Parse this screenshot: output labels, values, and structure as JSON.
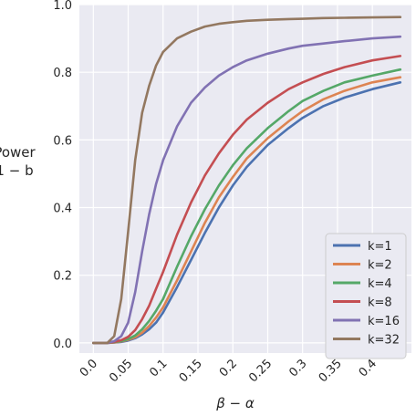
{
  "chart_data": {
    "type": "line",
    "title": "",
    "xlabel": "β − α",
    "ylabel_lines": [
      "Power",
      "1 − b"
    ],
    "xlim": [
      -0.02,
      0.456
    ],
    "ylim": [
      -0.03,
      1.0
    ],
    "xticks": [
      0.0,
      0.05,
      0.1,
      0.15,
      0.2,
      0.25,
      0.3,
      0.35,
      0.4
    ],
    "xtick_labels": [
      "0.0",
      "0.05",
      "0.1",
      "0.15",
      "0.2",
      "0.25",
      "0.3",
      "0.35",
      "0.4"
    ],
    "yticks": [
      0.0,
      0.2,
      0.4,
      0.6,
      0.8,
      1.0
    ],
    "ytick_labels": [
      "0.0",
      "0.2",
      "0.4",
      "0.6",
      "0.8",
      "1.0"
    ],
    "grid": true,
    "background": "#eaeaf2",
    "legend_position": "lower-right",
    "x": [
      0.0,
      0.02,
      0.03,
      0.04,
      0.05,
      0.06,
      0.07,
      0.08,
      0.09,
      0.1,
      0.12,
      0.14,
      0.16,
      0.18,
      0.2,
      0.22,
      0.25,
      0.28,
      0.3,
      0.33,
      0.36,
      0.4,
      0.44
    ],
    "series": [
      {
        "name": "k=1",
        "color": "#4c72b0",
        "values": [
          0,
          0,
          0.001,
          0.003,
          0.007,
          0.014,
          0.025,
          0.04,
          0.06,
          0.09,
          0.165,
          0.245,
          0.325,
          0.4,
          0.465,
          0.52,
          0.585,
          0.635,
          0.665,
          0.7,
          0.725,
          0.75,
          0.77
        ]
      },
      {
        "name": "k=2",
        "color": "#dd8452",
        "values": [
          0,
          0,
          0.001,
          0.004,
          0.009,
          0.017,
          0.03,
          0.05,
          0.075,
          0.105,
          0.185,
          0.27,
          0.355,
          0.43,
          0.49,
          0.545,
          0.605,
          0.655,
          0.685,
          0.72,
          0.745,
          0.77,
          0.785
        ]
      },
      {
        "name": "k=4",
        "color": "#55a868",
        "values": [
          0,
          0,
          0.002,
          0.005,
          0.011,
          0.022,
          0.04,
          0.065,
          0.095,
          0.13,
          0.225,
          0.315,
          0.395,
          0.465,
          0.525,
          0.575,
          0.635,
          0.685,
          0.715,
          0.745,
          0.77,
          0.79,
          0.808
        ]
      },
      {
        "name": "k=8",
        "color": "#c44e52",
        "values": [
          0,
          0,
          0.003,
          0.008,
          0.018,
          0.038,
          0.07,
          0.11,
          0.16,
          0.21,
          0.32,
          0.415,
          0.495,
          0.56,
          0.615,
          0.66,
          0.71,
          0.75,
          0.77,
          0.795,
          0.815,
          0.835,
          0.848
        ]
      },
      {
        "name": "k=16",
        "color": "#8172b3",
        "values": [
          0,
          0,
          0.005,
          0.02,
          0.06,
          0.15,
          0.27,
          0.38,
          0.47,
          0.54,
          0.64,
          0.71,
          0.755,
          0.79,
          0.815,
          0.835,
          0.855,
          0.87,
          0.878,
          0.885,
          0.892,
          0.9,
          0.905
        ]
      },
      {
        "name": "k=32",
        "color": "#937860",
        "values": [
          0,
          0,
          0.02,
          0.13,
          0.33,
          0.54,
          0.68,
          0.76,
          0.82,
          0.86,
          0.9,
          0.92,
          0.935,
          0.943,
          0.948,
          0.952,
          0.955,
          0.957,
          0.958,
          0.96,
          0.961,
          0.962,
          0.963
        ]
      }
    ]
  }
}
